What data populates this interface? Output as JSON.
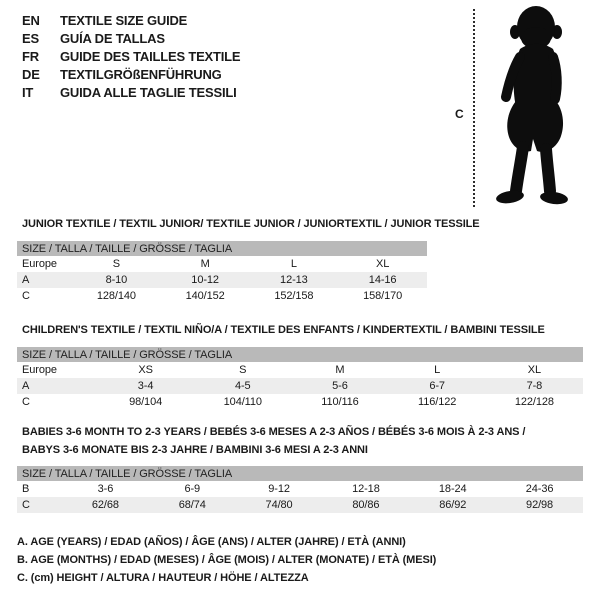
{
  "colors": {
    "header_bar_bg": "#b9b9b9",
    "alt_row_bg": "#ededed",
    "text": "#1a1a1a",
    "silhouette": "#0d0d0d"
  },
  "languages": [
    {
      "code": "EN",
      "text": "TEXTILE SIZE GUIDE"
    },
    {
      "code": "ES",
      "text": "GUÍA DE TALLAS"
    },
    {
      "code": "FR",
      "text": "GUIDE DES TAILLES TEXTILE"
    },
    {
      "code": "DE",
      "text": "TEXTILGRÖßENFÜHRUNG"
    },
    {
      "code": "IT",
      "text": "GUIDA ALLE TAGLIE TESSILI"
    }
  ],
  "figure": {
    "measure_label": "C",
    "icon": "baby-silhouette"
  },
  "size_tables": [
    {
      "title_lines": [
        "JUNIOR TEXTILE / TEXTIL JUNIOR/ TEXTILE JUNIOR / JUNIORTEXTIL / JUNIOR TESSILE"
      ],
      "header": "SIZE / TALLA / TAILLE / GRÖSSE / TAGLIA",
      "rows": [
        {
          "label": "Europe",
          "values": [
            "S",
            "M",
            "L",
            "XL"
          ],
          "shaded": false
        },
        {
          "label": "A",
          "values": [
            "8-10",
            "10-12",
            "12-13",
            "14-16"
          ],
          "shaded": true
        },
        {
          "label": "C",
          "values": [
            "128/140",
            "140/152",
            "152/158",
            "158/170"
          ],
          "shaded": false
        }
      ]
    },
    {
      "title_lines": [
        "CHILDREN'S TEXTILE / TEXTIL NIÑO/A / TEXTILE DES ENFANTS / KINDERTEXTIL / BAMBINI TESSILE"
      ],
      "header": "SIZE / TALLA / TAILLE / GRÖSSE / TAGLIA",
      "rows": [
        {
          "label": "Europe",
          "values": [
            "XS",
            "S",
            "M",
            "L",
            "XL"
          ],
          "shaded": false
        },
        {
          "label": "A",
          "values": [
            "3-4",
            "4-5",
            "5-6",
            "6-7",
            "7-8"
          ],
          "shaded": true
        },
        {
          "label": "C",
          "values": [
            "98/104",
            "104/110",
            "110/116",
            "116/122",
            "122/128"
          ],
          "shaded": false
        }
      ]
    },
    {
      "title_lines": [
        "BABIES 3-6 MONTH TO 2-3 YEARS / BEBÉS 3-6 MESES A 2-3 AÑOS / BÉBÉS 3-6 MOIS À 2-3 ANS /",
        "BABYS 3-6 MONATE BIS 2-3 JAHRE / BAMBINI 3-6 MESI A 2-3 ANNI"
      ],
      "header": "SIZE / TALLA / TAILLE / GRÖSSE / TAGLIA",
      "rows": [
        {
          "label": "B",
          "values": [
            "3-6",
            "6-9",
            "9-12",
            "12-18",
            "18-24",
            "24-36"
          ],
          "shaded": false
        },
        {
          "label": "C",
          "values": [
            "62/68",
            "68/74",
            "74/80",
            "80/86",
            "86/92",
            "92/98"
          ],
          "shaded": true
        }
      ]
    }
  ],
  "notes": [
    "A. AGE (YEARS) / EDAD (AÑOS) / ÂGE (ANS) / ALTER (JAHRE) / ETÀ (ANNI)",
    "B. AGE (MONTHS) / EDAD (MESES) / ÂGE (MOIS) / ALTER (MONATE) / ETÀ (MESI)",
    "C. (cm) HEIGHT / ALTURA / HAUTEUR / HÖHE / ALTEZZA"
  ]
}
